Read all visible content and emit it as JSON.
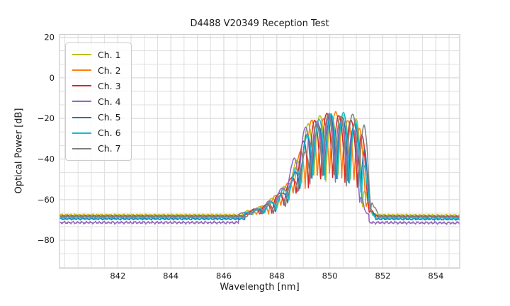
{
  "page": {
    "background": "#ffffff"
  },
  "chart_data": {
    "type": "line",
    "title": "D4488 V20349 Reception Test",
    "xlabel": "Wavelength [nm]",
    "ylabel": "Optical Power [dB]",
    "xlim": [
      839.8,
      854.9
    ],
    "ylim": [
      -93.9,
      21.4
    ],
    "xticks": [
      842,
      844,
      846,
      848,
      850,
      852,
      854
    ],
    "xtick_labels": [
      "842",
      "844",
      "846",
      "848",
      "850",
      "852",
      "854"
    ],
    "yticks": [
      20,
      0,
      -20,
      -40,
      -60,
      -80
    ],
    "ytick_labels": [
      "20",
      "0",
      "−20",
      "−40",
      "−60",
      "−80"
    ],
    "x_minor_step_nm": 0.5,
    "y_minor_step_db": 6.6667,
    "grid": true,
    "grid_minor_color": "#dfdfdf",
    "grid_major_color": "#d4d4d4",
    "spine_color": "#cccccc",
    "text_color": "#1a1a1a",
    "legend_position": "upper left",
    "band": {
      "comment": "Spectral band common to all channels; per-channel nm shift applied. Values read from plot.",
      "x_start_nm": 846.7,
      "x_end_nm": 851.62,
      "fringe_period_nm": 0.46,
      "envelope_top_db": [
        [
          846.7,
          -66.5
        ],
        [
          847.15,
          -64.5
        ],
        [
          847.5,
          -62.5
        ],
        [
          848.0,
          -57.5
        ],
        [
          848.45,
          -50.0
        ],
        [
          848.75,
          -40.0
        ],
        [
          849.0,
          -29.0
        ],
        [
          849.3,
          -22.0
        ],
        [
          849.7,
          -19.0
        ],
        [
          850.1,
          -18.0
        ],
        [
          850.5,
          -18.5
        ],
        [
          850.9,
          -20.0
        ],
        [
          851.1,
          -24.0
        ],
        [
          851.22,
          -33.0
        ],
        [
          851.32,
          -50.0
        ],
        [
          851.45,
          -63.0
        ],
        [
          851.62,
          -67.5
        ]
      ],
      "envelope_bottom_db": [
        [
          846.7,
          -67.5
        ],
        [
          847.3,
          -67.2
        ],
        [
          847.8,
          -66.5
        ],
        [
          848.2,
          -63.0
        ],
        [
          848.55,
          -58.0
        ],
        [
          849.0,
          -53.5
        ],
        [
          849.4,
          -51.0
        ],
        [
          849.8,
          -49.5
        ],
        [
          850.2,
          -50.0
        ],
        [
          850.6,
          -52.0
        ],
        [
          850.9,
          -54.5
        ],
        [
          851.1,
          -58.0
        ],
        [
          851.25,
          -63.0
        ],
        [
          851.4,
          -66.5
        ],
        [
          851.62,
          -68.0
        ]
      ],
      "peak_level_db": -18,
      "baseline_cluster_db": -68,
      "valley_depth_db": -50
    },
    "series": [
      {
        "name": "Ch. 1",
        "color": "#bcbd22",
        "baseline_db": -67.5,
        "shift_nm": 0.0,
        "phase_nm": 0.0,
        "top_offset_db": 0.3,
        "noise_db": 0.45,
        "seed": 1
      },
      {
        "name": "Ch. 2",
        "color": "#ff7f0e",
        "baseline_db": -68.0,
        "shift_nm": 0.04,
        "phase_nm": 0.1,
        "top_offset_db": 0.0,
        "noise_db": 0.45,
        "seed": 2
      },
      {
        "name": "Ch. 3",
        "color": "#d62728",
        "baseline_db": -68.2,
        "shift_nm": 0.07,
        "phase_nm": 0.19,
        "top_offset_db": 0.0,
        "noise_db": 0.45,
        "seed": 3
      },
      {
        "name": "Ch. 4",
        "color": "#9467bd",
        "baseline_db": -71.3,
        "shift_nm": -0.15,
        "phase_nm": 0.05,
        "top_offset_db": -1.6,
        "noise_db": 0.75,
        "seed": 4
      },
      {
        "name": "Ch. 5",
        "color": "#1f77b4",
        "baseline_db": -69.5,
        "shift_nm": 0.1,
        "phase_nm": 0.3,
        "top_offset_db": -0.4,
        "noise_db": 0.5,
        "seed": 5
      },
      {
        "name": "Ch. 6",
        "color": "#17becf",
        "baseline_db": -68.9,
        "shift_nm": 0.06,
        "phase_nm": 0.37,
        "top_offset_db": -0.5,
        "noise_db": 0.5,
        "seed": 6
      },
      {
        "name": "Ch. 7",
        "color": "#7f7f7f",
        "baseline_db": -68.3,
        "shift_nm": 0.2,
        "phase_nm": 0.12,
        "top_offset_db": 0.5,
        "noise_db": 0.4,
        "seed": 7
      }
    ]
  }
}
